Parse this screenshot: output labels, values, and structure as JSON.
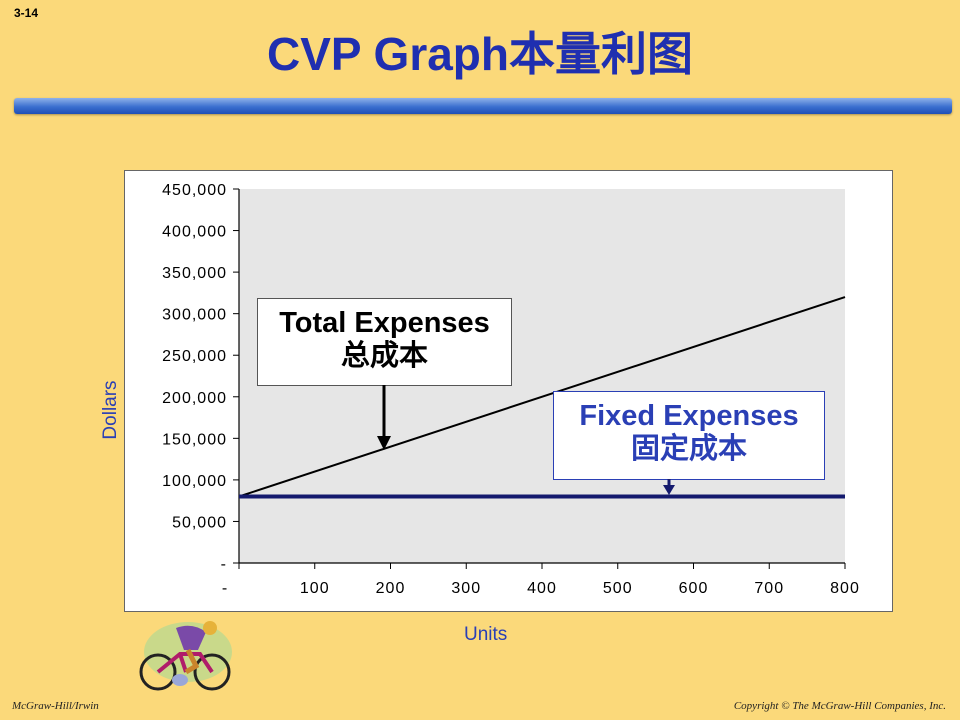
{
  "slide_number": "3-14",
  "title": "CVP Graph本量利图",
  "footer": {
    "left": "McGraw-Hill/Irwin",
    "right": "Copyright © The McGraw-Hill Companies, Inc."
  },
  "callouts": {
    "total_line1": "Total Expenses",
    "total_line2": "总成本",
    "fixed_line1": "Fixed Expenses",
    "fixed_line2": "固定成本"
  },
  "colors": {
    "title": "#1f2fb0",
    "background": "#fbd97a",
    "plot_area": "#e6e6e6",
    "total_line": "#000000",
    "fixed_line": "#141a6e",
    "axis_label": "#2a3fb5"
  },
  "chart_data": {
    "type": "line",
    "xlabel": "Units",
    "ylabel": "Dollars",
    "xlim": [
      0,
      800
    ],
    "ylim": [
      0,
      450000
    ],
    "x_tick_labels": [
      "-",
      "100",
      "200",
      "300",
      "400",
      "500",
      "600",
      "700",
      "800"
    ],
    "y_tick_labels": [
      "-",
      "50,000",
      "100,000",
      "150,000",
      "200,000",
      "250,000",
      "300,000",
      "350,000",
      "400,000",
      "450,000"
    ],
    "grid": false,
    "series": [
      {
        "key": "total",
        "x": [
          0,
          800
        ],
        "y": [
          80000,
          320000
        ]
      },
      {
        "key": "fixed",
        "x": [
          0,
          800
        ],
        "y": [
          80000,
          80000
        ]
      }
    ]
  }
}
